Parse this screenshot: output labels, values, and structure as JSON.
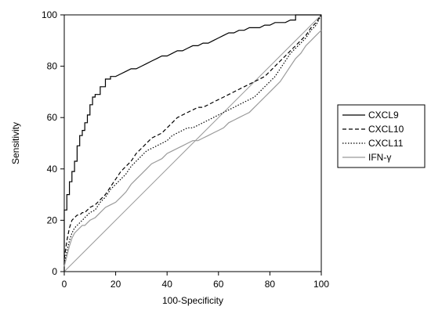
{
  "chart_data": {
    "type": "line",
    "xlabel": "100-Specificity",
    "ylabel": "Sensitivity",
    "xlim": [
      0,
      100
    ],
    "ylim": [
      0,
      100
    ],
    "xticks": [
      0,
      20,
      40,
      60,
      80,
      100
    ],
    "yticks": [
      0,
      20,
      40,
      60,
      80,
      100
    ],
    "xtick_labels": [
      "0",
      "20",
      "40",
      "60",
      "80",
      "100"
    ],
    "ytick_labels": [
      "0",
      "20",
      "40",
      "60",
      "80",
      "100"
    ],
    "grid": false,
    "legend_position": "right",
    "reference_line": {
      "x": [
        0,
        100
      ],
      "y": [
        0,
        100
      ],
      "color": "#9a9a9a"
    },
    "series": [
      {
        "name": "CXCL9",
        "style": "solid",
        "color": "#000000",
        "x": [
          0,
          0,
          1,
          1,
          2,
          2,
          3,
          3,
          4,
          4,
          5,
          5,
          6,
          6,
          7,
          7,
          8,
          8,
          9,
          9,
          10,
          10,
          11,
          11,
          12,
          12,
          14,
          14,
          16,
          16,
          18,
          18,
          20,
          22,
          24,
          26,
          28,
          30,
          32,
          34,
          36,
          38,
          40,
          42,
          44,
          46,
          48,
          50,
          52,
          54,
          56,
          58,
          60,
          62,
          64,
          66,
          68,
          70,
          72,
          74,
          76,
          78,
          80,
          82,
          84,
          86,
          88,
          90,
          90,
          100
        ],
        "y": [
          0,
          24,
          24,
          30,
          30,
          35,
          35,
          39,
          39,
          43,
          43,
          49,
          49,
          53,
          53,
          55,
          55,
          58,
          58,
          61,
          61,
          65,
          65,
          68,
          68,
          69,
          69,
          72,
          72,
          75,
          75,
          76,
          76,
          77,
          78,
          79,
          79,
          80,
          81,
          82,
          83,
          84,
          84,
          85,
          86,
          86,
          87,
          88,
          88,
          89,
          89,
          90,
          91,
          92,
          93,
          93,
          94,
          94,
          95,
          95,
          95,
          96,
          96,
          97,
          97,
          97,
          98,
          98,
          100,
          100
        ]
      },
      {
        "name": "CXCL10",
        "style": "dashed",
        "color": "#000000",
        "x": [
          0,
          1,
          2,
          3,
          4,
          5,
          6,
          7,
          8,
          9,
          10,
          12,
          14,
          16,
          18,
          20,
          22,
          24,
          26,
          28,
          30,
          32,
          34,
          36,
          38,
          40,
          42,
          44,
          46,
          48,
          50,
          52,
          54,
          56,
          58,
          60,
          62,
          64,
          66,
          68,
          70,
          72,
          74,
          76,
          78,
          80,
          82,
          84,
          86,
          88,
          90,
          92,
          94,
          96,
          98,
          100
        ],
        "y": [
          5,
          12,
          17,
          20,
          21,
          22,
          22,
          23,
          23,
          24,
          25,
          26,
          28,
          30,
          33,
          36,
          39,
          41,
          43,
          46,
          48,
          50,
          52,
          53,
          54,
          56,
          58,
          60,
          61,
          62,
          63,
          64,
          64,
          65,
          66,
          67,
          68,
          69,
          70,
          71,
          72,
          73,
          74,
          75,
          76,
          78,
          80,
          82,
          84,
          86,
          88,
          90,
          92,
          95,
          97,
          100
        ]
      },
      {
        "name": "CXCL11",
        "style": "dotted",
        "color": "#000000",
        "x": [
          0,
          1,
          2,
          3,
          4,
          5,
          6,
          7,
          8,
          9,
          10,
          12,
          14,
          16,
          18,
          20,
          22,
          24,
          26,
          28,
          30,
          32,
          34,
          36,
          38,
          40,
          42,
          44,
          46,
          48,
          50,
          52,
          54,
          56,
          58,
          60,
          62,
          64,
          66,
          68,
          70,
          72,
          74,
          76,
          78,
          80,
          82,
          84,
          86,
          88,
          90,
          92,
          94,
          96,
          98,
          100
        ],
        "y": [
          3,
          8,
          12,
          15,
          17,
          18,
          19,
          20,
          21,
          22,
          23,
          24,
          27,
          29,
          32,
          34,
          36,
          38,
          41,
          43,
          45,
          47,
          48,
          49,
          50,
          51,
          53,
          54,
          55,
          56,
          56,
          57,
          58,
          59,
          60,
          61,
          62,
          63,
          64,
          65,
          66,
          67,
          68,
          70,
          72,
          74,
          76,
          79,
          82,
          85,
          87,
          89,
          91,
          94,
          96,
          100
        ]
      },
      {
        "name": "IFN-γ",
        "style": "solid",
        "color": "#9a9a9a",
        "x": [
          0,
          1,
          2,
          3,
          4,
          5,
          6,
          7,
          8,
          9,
          10,
          12,
          14,
          16,
          18,
          20,
          22,
          24,
          26,
          28,
          30,
          32,
          34,
          36,
          38,
          40,
          42,
          44,
          46,
          48,
          50,
          52,
          54,
          56,
          58,
          60,
          62,
          64,
          66,
          68,
          70,
          72,
          74,
          76,
          78,
          80,
          82,
          84,
          86,
          88,
          90,
          92,
          94,
          96,
          98,
          100
        ],
        "y": [
          2,
          6,
          10,
          13,
          15,
          16,
          17,
          18,
          18,
          19,
          20,
          21,
          23,
          25,
          26,
          27,
          29,
          31,
          34,
          36,
          38,
          40,
          42,
          43,
          44,
          46,
          47,
          48,
          49,
          50,
          51,
          51,
          52,
          53,
          54,
          55,
          56,
          58,
          59,
          60,
          61,
          62,
          64,
          66,
          68,
          70,
          72,
          74,
          77,
          80,
          83,
          85,
          88,
          90,
          92,
          94
        ]
      }
    ]
  }
}
